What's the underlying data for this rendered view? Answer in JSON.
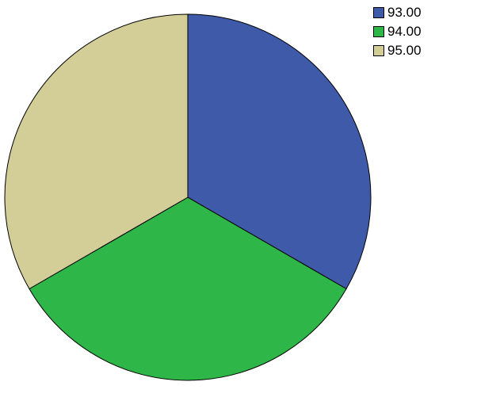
{
  "chart_data": {
    "type": "pie",
    "title": "",
    "categories": [
      "93.00",
      "94.00",
      "95.00"
    ],
    "values": [
      33.33,
      33.33,
      33.33
    ],
    "colors": [
      "#3f5aa9",
      "#2eb648",
      "#d3cd97"
    ],
    "start_angle_deg": 0,
    "direction": "clockwise",
    "legend": {
      "position": "top-right",
      "entries": [
        "93.00",
        "94.00",
        "95.00"
      ]
    }
  }
}
